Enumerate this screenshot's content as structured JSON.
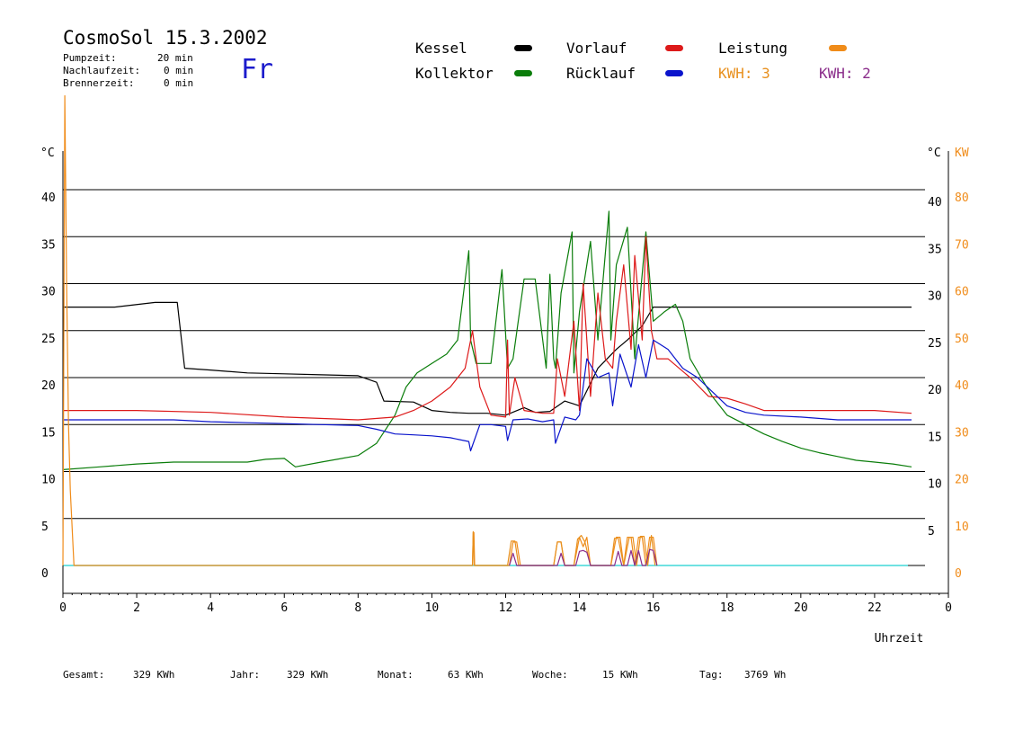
{
  "header": {
    "title": "CosmoSol 15.3.2002",
    "day": "Fr",
    "info": [
      {
        "label": "Pumpzeit:",
        "value": "20 min"
      },
      {
        "label": "Nachlaufzeit:",
        "value": "0 min"
      },
      {
        "label": "Brennerzeit:",
        "value": "0 min"
      }
    ]
  },
  "legend": {
    "kessel": "Kessel",
    "kollektor": "Kollektor",
    "vorlauf": "Vorlauf",
    "ruecklauf": "Rücklauf",
    "leistung": "Leistung",
    "kwh1": "KWH: 3",
    "kwh2": "KWH: 2"
  },
  "colors": {
    "kessel": "#000000",
    "kollektor": "#0a7d0a",
    "vorlauf": "#dd1a1a",
    "ruecklauf": "#0a14cc",
    "leistung": "#f08c1a",
    "kwh1": "#e8901e",
    "kwh2": "#8a2c8a",
    "baseline": "#40d8d8"
  },
  "footer": [
    {
      "label": "Gesamt:",
      "value": "329 KWh"
    },
    {
      "label": "Jahr:",
      "value": "329 KWh"
    },
    {
      "label": "Monat:",
      "value": "63 KWh"
    },
    {
      "label": "Woche:",
      "value": "15 KWh"
    },
    {
      "label": "Tag:",
      "value": "3769 Wh"
    }
  ],
  "chart_data": {
    "type": "line",
    "xlabel": "Uhrzeit",
    "ylabel_left": "°C",
    "ylabel_right": "°C",
    "ylabel_right2": "KW",
    "xlim": [
      0,
      24
    ],
    "ylim": [
      0,
      45
    ],
    "x_ticks": [
      "0",
      "2",
      "4",
      "6",
      "8",
      "10",
      "12",
      "14",
      "16",
      "18",
      "20",
      "22",
      "0"
    ],
    "y_ticks_left": [
      "0",
      "5",
      "10",
      "15",
      "20",
      "25",
      "30",
      "35",
      "40"
    ],
    "y_ticks_right": [
      "5",
      "10",
      "15",
      "20",
      "25",
      "30",
      "35",
      "40"
    ],
    "y_ticks_kw": [
      "0",
      "10",
      "20",
      "30",
      "40",
      "50",
      "60",
      "70",
      "80"
    ],
    "grid": true,
    "series": [
      {
        "name": "Kessel",
        "key": "kessel",
        "x": [
          0,
          1.4,
          2.5,
          3.1,
          3.3,
          4,
          5,
          6,
          7,
          8,
          8.5,
          8.7,
          9.5,
          10,
          10.5,
          11,
          11.5,
          12,
          12.5,
          12.8,
          13.2,
          13.6,
          14,
          14.5,
          15,
          15.3,
          15.7,
          16,
          16.5,
          17,
          18,
          19,
          20,
          21,
          22,
          23
        ],
        "y": [
          27.5,
          27.5,
          28,
          28,
          21,
          20.8,
          20.5,
          20.4,
          20.3,
          20.2,
          19.5,
          17.5,
          17.4,
          16.5,
          16.3,
          16.2,
          16.2,
          16.0,
          16.8,
          16.3,
          16.4,
          17.5,
          17.0,
          21,
          23,
          24,
          25.5,
          27.5,
          27.5,
          27.5,
          27.5,
          27.5,
          27.5,
          27.5,
          27.5,
          27.5
        ]
      },
      {
        "name": "Kollektor",
        "key": "kollektor",
        "x": [
          0,
          1,
          2,
          3,
          4,
          5,
          5.5,
          6,
          6.3,
          7,
          8,
          8.5,
          9,
          9.3,
          9.6,
          10,
          10.4,
          10.7,
          11,
          11.05,
          11.2,
          11.6,
          11.9,
          12.05,
          12.2,
          12.5,
          12.8,
          13.1,
          13.2,
          13.3,
          13.35,
          13.5,
          13.8,
          13.85,
          14,
          14.3,
          14.5,
          14.8,
          14.85,
          15,
          15.3,
          15.5,
          15.8,
          16,
          16.3,
          16.6,
          16.8,
          17,
          17.3,
          17.6,
          18,
          18.5,
          19,
          19.5,
          20,
          20.5,
          21,
          21.5,
          22,
          22.5,
          23
        ],
        "y": [
          10.2,
          10.5,
          10.8,
          11.0,
          11.0,
          11.0,
          11.3,
          11.4,
          10.5,
          11.0,
          11.7,
          13,
          16,
          19,
          20.5,
          21.5,
          22.5,
          24,
          33.5,
          24,
          21.5,
          21.5,
          31.5,
          21,
          22,
          30.5,
          30.5,
          21,
          31,
          22,
          21,
          29,
          35.5,
          20.5,
          27,
          34.5,
          24,
          37.7,
          24,
          32,
          36,
          22,
          35.5,
          26,
          27,
          27.8,
          26,
          22,
          20,
          18,
          16,
          15,
          14,
          13.2,
          12.5,
          12,
          11.6,
          11.2,
          11.0,
          10.8,
          10.5
        ]
      },
      {
        "name": "Vorlauf",
        "key": "vorlauf",
        "x": [
          0,
          2,
          4,
          6,
          8,
          9,
          9.5,
          10,
          10.5,
          10.9,
          11.1,
          11.3,
          11.6,
          12,
          12.05,
          12.1,
          12.25,
          12.5,
          13,
          13.3,
          13.4,
          13.6,
          13.85,
          14.0,
          14.1,
          14.3,
          14.5,
          14.7,
          14.9,
          15.0,
          15.2,
          15.4,
          15.5,
          15.7,
          15.8,
          15.95,
          16.1,
          16.4,
          17,
          17.5,
          18,
          18.5,
          19,
          20,
          21,
          22,
          23
        ],
        "y": [
          16.5,
          16.5,
          16.3,
          15.8,
          15.5,
          15.8,
          16.5,
          17.5,
          19,
          21,
          25,
          19,
          16,
          15.8,
          24,
          16,
          20,
          16.5,
          16.2,
          16.2,
          22,
          18,
          26,
          16.5,
          30,
          18,
          29,
          22,
          21,
          26,
          32,
          23,
          33,
          24,
          35,
          25,
          22,
          22,
          20,
          18,
          17.8,
          17.2,
          16.5,
          16.5,
          16.5,
          16.5,
          16.2
        ]
      },
      {
        "name": "Rücklauf",
        "key": "ruecklauf",
        "x": [
          0,
          1,
          2,
          3,
          4,
          5,
          6,
          7,
          8,
          8.5,
          9,
          9.5,
          10,
          10.5,
          11,
          11.05,
          11.3,
          11.6,
          12,
          12.05,
          12.2,
          12.6,
          13,
          13.3,
          13.35,
          13.6,
          13.9,
          14,
          14.2,
          14.5,
          14.8,
          14.9,
          15.1,
          15.4,
          15.6,
          15.8,
          16,
          16.4,
          16.8,
          17.2,
          17.6,
          18,
          18.5,
          19,
          20,
          21,
          22,
          23
        ],
        "y": [
          15.5,
          15.5,
          15.5,
          15.5,
          15.3,
          15.2,
          15.1,
          15.0,
          14.9,
          14.5,
          14.0,
          13.9,
          13.8,
          13.6,
          13.2,
          12.2,
          15,
          15,
          14.8,
          13.3,
          15.5,
          15.6,
          15.3,
          15.5,
          13,
          15.8,
          15.5,
          16,
          22,
          20,
          20.5,
          17,
          22.5,
          19,
          23.5,
          20,
          24,
          23,
          21,
          20,
          18.5,
          17,
          16.3,
          16,
          15.8,
          15.5,
          15.5,
          15.5
        ]
      },
      {
        "name": "Leistung",
        "key": "leistung",
        "x": [
          0,
          0.05,
          0.1,
          0.15,
          0.2,
          0.3,
          11.1,
          11.12,
          11.14,
          11.16,
          12.1,
          12.2,
          12.3,
          12.4,
          13.3,
          13.4,
          13.5,
          13.6,
          13.85,
          14.0,
          14.1,
          14.2,
          14.3,
          14.4,
          14.85,
          15.0,
          15.1,
          15.2,
          15.3,
          15.4,
          15.5,
          15.6,
          15.7,
          15.8,
          15.9,
          16.0,
          16.1
        ],
        "y": [
          0,
          50,
          30,
          15,
          8,
          0,
          0,
          3.5,
          3.5,
          0,
          0,
          2.5,
          2.5,
          0,
          0,
          2.5,
          2.5,
          0,
          0,
          3,
          2,
          3,
          0,
          0,
          0,
          3,
          3,
          0,
          3,
          3,
          0,
          3,
          3,
          0,
          3,
          3,
          0
        ]
      },
      {
        "name": "KWH: 3",
        "key": "kwh1",
        "x": [
          11.1,
          11.12,
          11.15,
          12.05,
          12.15,
          12.25,
          12.35,
          13.3,
          13.4,
          13.5,
          13.6,
          13.85,
          13.95,
          14.05,
          14.15,
          14.3,
          14.85,
          14.95,
          15.05,
          15.2,
          15.35,
          15.45,
          15.55,
          15.65,
          15.75,
          15.85,
          15.95,
          16.05
        ],
        "y": [
          0,
          3.6,
          0,
          0,
          2.6,
          2.6,
          0,
          0,
          2.5,
          2.5,
          0,
          0,
          2.8,
          3.2,
          2.5,
          0,
          0,
          2.9,
          2.9,
          0,
          3.0,
          3.0,
          0,
          3.1,
          3.1,
          0,
          3.2,
          0
        ]
      },
      {
        "name": "KWH: 2",
        "key": "kwh2",
        "x": [
          12.1,
          12.2,
          12.3,
          13.4,
          13.5,
          13.6,
          13.9,
          14.0,
          14.1,
          14.2,
          14.3,
          14.95,
          15.05,
          15.15,
          15.3,
          15.4,
          15.5,
          15.6,
          15.7,
          15.8,
          15.9,
          16.0,
          16.1
        ],
        "y": [
          0,
          1.3,
          0,
          0,
          1.3,
          0,
          0,
          1.5,
          1.6,
          1.4,
          0,
          0,
          1.5,
          0,
          0,
          1.6,
          0,
          1.6,
          0,
          0,
          1.7,
          1.6,
          0
        ]
      }
    ]
  }
}
